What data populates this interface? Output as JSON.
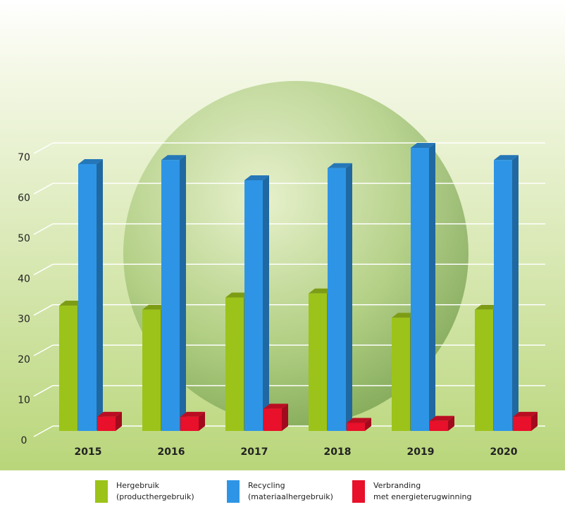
{
  "chart_data": {
    "type": "bar3d",
    "categories": [
      "2015",
      "2016",
      "2017",
      "2018",
      "2019",
      "2020"
    ],
    "series": [
      {
        "name": "Hergebruik\n(producthergebruik)",
        "color": "#9cc31a",
        "values": [
          31,
          30,
          33,
          34,
          28,
          30
        ]
      },
      {
        "name": "Recycling\n(materiaalhergebruik)",
        "color": "#2e95e6",
        "values": [
          66,
          67,
          62,
          65,
          70,
          67
        ]
      },
      {
        "name": "Verbranding\nmet energieterugwinning",
        "color": "#e8102a",
        "values": [
          3.5,
          3.5,
          5.5,
          2,
          2.5,
          3.5
        ]
      }
    ],
    "ylim": [
      0,
      70
    ],
    "yticks": [
      0,
      10,
      20,
      30,
      40,
      50,
      60,
      70
    ],
    "grid": true
  }
}
